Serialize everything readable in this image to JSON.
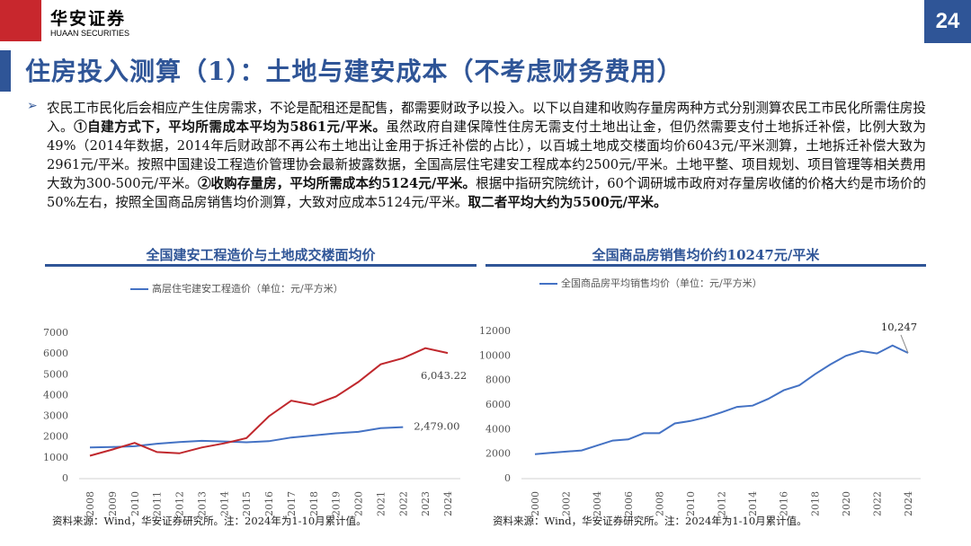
{
  "header": {
    "logo_text": "华安证券",
    "logo_subtext": "HUAAN SECURITIES",
    "page_number": "24"
  },
  "title": "住房投入测算（1）：土地与建安成本（不考虑财务费用）",
  "paragraph": [
    {
      "text": "农民工市民化后会相应产生住房需求，不论是配租还是配售，都需要财政予以投入。以下以自建和收购存量房两种方式分别测算农民工市民化所需住房投入。",
      "bold": false
    },
    {
      "text": "①自建方式下，平均所需成本平均为5861元/平米。",
      "bold": true
    },
    {
      "text": "虽然政府自建保障性住房无需支付土地出让金，但仍然需要支付土地拆迁补偿，比例大致为49%（2014年数据，2014年后财政部不再公布土地出让金用于拆迁补偿的占比），以百城土地成交楼面均价6043元/平米测算，土地拆迁补偿大致为2961元/平米。按照中国建设工程造价管理协会最新披露数据，全国高层住宅建安工程成本约2500元/平米。土地平整、项目规划、项目管理等相关费用大致为300-500元/平米。",
      "bold": false
    },
    {
      "text": "②收购存量房，平均所需成本约5124元/平米。",
      "bold": true
    },
    {
      "text": "根据中指研究院统计，60个调研城市政府对存量房收储的价格大约是市场价的50%左右，按照全国商品房销售均价测算，大致对应成本5124元/平米。",
      "bold": false
    },
    {
      "text": "取二者平均大约为5500元/平米。",
      "bold": true
    }
  ],
  "chart_data": [
    {
      "type": "line",
      "title": "全国建安工程造价与土地成交楼面均价",
      "note": "资料来源：Wind，华安证券研究所。注：2024年为1-10月累计值。",
      "categories": [
        "2008",
        "2009",
        "2010",
        "2011",
        "2012",
        "2013",
        "2014",
        "2015",
        "2016",
        "2017",
        "2018",
        "2019",
        "2020",
        "2021",
        "2022",
        "2023",
        "2024"
      ],
      "series": [
        {
          "name": "高层住宅建安工程造价（单位：元/平方米）",
          "color": "#4472c4",
          "values": [
            1500,
            1520,
            1560,
            1680,
            1760,
            1820,
            1790,
            1750,
            1800,
            1980,
            2080,
            2180,
            2250,
            2430,
            2479.0,
            null,
            null
          ],
          "value_labels": [
            null,
            null,
            null,
            null,
            null,
            null,
            null,
            null,
            null,
            null,
            null,
            null,
            null,
            null,
            "2,479.00",
            null,
            null
          ]
        },
        {
          "color": "#c0282d",
          "values": [
            1100,
            1400,
            1720,
            1280,
            1220,
            1500,
            1700,
            1950,
            3000,
            3750,
            3550,
            3950,
            4650,
            5500,
            5800,
            6280,
            6043.22
          ],
          "value_labels": [
            null,
            null,
            null,
            null,
            null,
            null,
            null,
            null,
            null,
            null,
            null,
            null,
            null,
            null,
            null,
            null,
            "6,043.22"
          ]
        }
      ],
      "ylim": [
        0,
        7000
      ],
      "yticks": [
        0,
        1000,
        2000,
        3000,
        4000,
        5000,
        6000,
        7000
      ]
    },
    {
      "type": "line",
      "title": "全国商品房销售均价约10247元/平米",
      "note": "资料来源：Wind，华安证券研究所。注：2024年为1-10月累计值。",
      "categories": [
        "2000",
        null,
        "2002",
        null,
        "2004",
        null,
        "2006",
        null,
        "2008",
        null,
        "2010",
        null,
        "2012",
        null,
        "2014",
        null,
        "2016",
        null,
        "2018",
        null,
        "2020",
        null,
        "2022",
        null,
        "2024"
      ],
      "series": [
        {
          "name": "全国商品房平均销售均价（单位：元/平方米）",
          "color": "#4472c4",
          "values": [
            2000,
            2100,
            2200,
            2300,
            2700,
            3100,
            3200,
            3700,
            3700,
            4500,
            4700,
            5000,
            5400,
            5850,
            5950,
            6500,
            7200,
            7600,
            8500,
            9300,
            10000,
            10400,
            10200,
            10850,
            10247
          ],
          "value_labels": [
            null,
            null,
            null,
            null,
            null,
            null,
            null,
            null,
            null,
            null,
            null,
            null,
            null,
            null,
            null,
            null,
            null,
            null,
            null,
            null,
            null,
            null,
            null,
            null,
            "10,247"
          ]
        }
      ],
      "ylim": [
        0,
        12000
      ],
      "yticks": [
        0,
        2000,
        4000,
        6000,
        8000,
        10000,
        12000
      ]
    }
  ]
}
